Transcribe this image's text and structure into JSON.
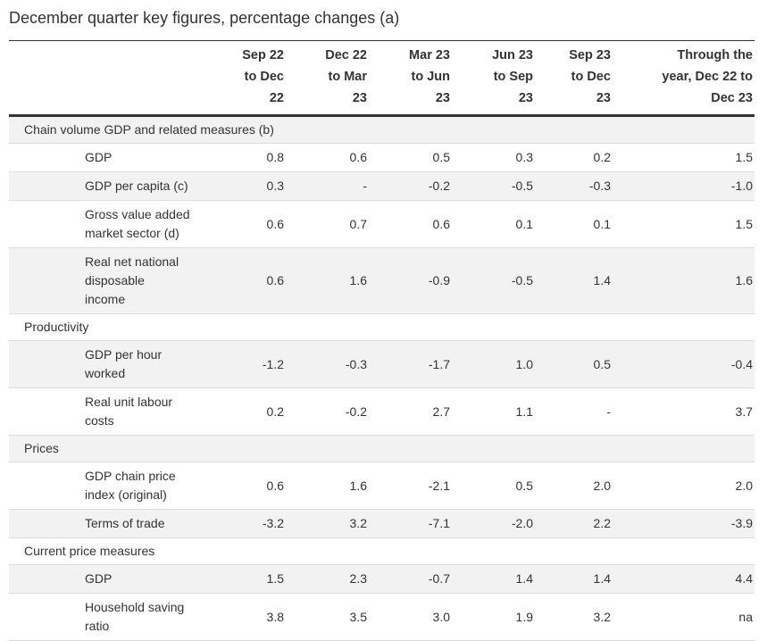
{
  "page_title": "December quarter key figures, percentage changes (a)",
  "colors": {
    "text": "#333333",
    "row_shade_bg": "#f2f2f2",
    "row_border": "#dddddd",
    "strong_border": "#333333"
  },
  "table": {
    "columns": [
      {
        "lines": [
          "Sep 22",
          "to Dec",
          "22"
        ]
      },
      {
        "lines": [
          "Dec 22",
          "to Mar",
          "23"
        ]
      },
      {
        "lines": [
          "Mar 23",
          "to Jun",
          "23"
        ]
      },
      {
        "lines": [
          "Jun 23",
          "to Sep",
          "23"
        ]
      },
      {
        "lines": [
          "Sep 23",
          "to Dec",
          "23"
        ]
      },
      {
        "lines": [
          "Through the",
          "year, Dec 22 to",
          "Dec 23"
        ]
      }
    ],
    "sections": [
      {
        "header": "Chain volume GDP and related measures (b)",
        "rows": [
          {
            "label_lines": [
              "GDP"
            ],
            "values": [
              "0.8",
              "0.6",
              "0.5",
              "0.3",
              "0.2",
              "1.5"
            ]
          },
          {
            "label_lines": [
              "GDP per capita (c)"
            ],
            "values": [
              "0.3",
              "-",
              "-0.2",
              "-0.5",
              "-0.3",
              "-1.0"
            ]
          },
          {
            "label_lines": [
              "Gross value added",
              "market sector (d)"
            ],
            "values": [
              "0.6",
              "0.7",
              "0.6",
              "0.1",
              "0.1",
              "1.5"
            ]
          },
          {
            "label_lines": [
              "Real net national",
              "disposable",
              "income"
            ],
            "values": [
              "0.6",
              "1.6",
              "-0.9",
              "-0.5",
              "1.4",
              "1.6"
            ]
          }
        ]
      },
      {
        "header": "Productivity",
        "rows": [
          {
            "label_lines": [
              "GDP per hour",
              "worked"
            ],
            "values": [
              "-1.2",
              "-0.3",
              "-1.7",
              "1.0",
              "0.5",
              "-0.4"
            ]
          },
          {
            "label_lines": [
              "Real unit labour",
              "costs"
            ],
            "values": [
              "0.2",
              "-0.2",
              "2.7",
              "1.1",
              "-",
              "3.7"
            ]
          }
        ]
      },
      {
        "header": "Prices",
        "rows": [
          {
            "label_lines": [
              "GDP chain price",
              "index (original)"
            ],
            "values": [
              "0.6",
              "1.6",
              "-2.1",
              "0.5",
              "2.0",
              "2.0"
            ]
          },
          {
            "label_lines": [
              "Terms of trade"
            ],
            "values": [
              "-3.2",
              "3.2",
              "-7.1",
              "-2.0",
              "2.2",
              "-3.9"
            ]
          }
        ]
      },
      {
        "header": "Current price measures",
        "rows": [
          {
            "label_lines": [
              "GDP"
            ],
            "values": [
              "1.5",
              "2.3",
              "-0.7",
              "1.4",
              "1.4",
              "4.4"
            ]
          },
          {
            "label_lines": [
              "Household saving",
              "ratio"
            ],
            "values": [
              "3.8",
              "3.5",
              "3.0",
              "1.9",
              "3.2",
              "na"
            ]
          }
        ]
      }
    ]
  }
}
